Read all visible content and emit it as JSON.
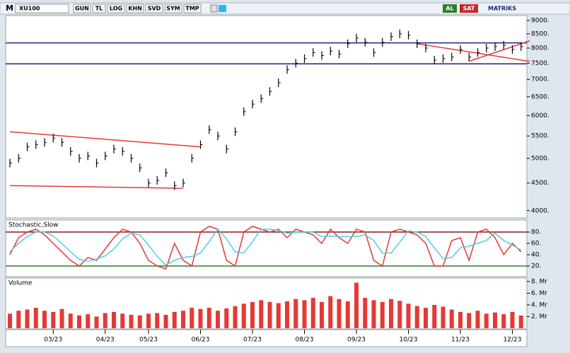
{
  "toolbar": {
    "menu": "M",
    "symbol": "XU100",
    "buttons": [
      "GUN",
      "TL",
      "LOG",
      "KHN",
      "SVD",
      "SYM",
      "TMP"
    ],
    "buy": "AL",
    "sell": "SAT",
    "brand": "MATRIKS"
  },
  "chart_data": [
    {
      "type": "ohlc-close",
      "log_scale": true,
      "color": "#000000",
      "values": [
        4900,
        5000,
        5250,
        5300,
        5350,
        5450,
        5350,
        5150,
        5000,
        5050,
        4900,
        5050,
        5200,
        5150,
        5000,
        4800,
        4500,
        4550,
        4700,
        4450,
        4500,
        5000,
        5300,
        5650,
        5500,
        5200,
        5600,
        6100,
        6300,
        6450,
        6650,
        6900,
        7300,
        7500,
        7650,
        7850,
        7750,
        7900,
        7800,
        8150,
        8350,
        8200,
        7850,
        8200,
        8400,
        8500,
        8450,
        8150,
        8000,
        7600,
        7650,
        7700,
        7950,
        7700,
        7850,
        8000,
        8050,
        8100,
        7950,
        8050
      ],
      "ylim": [
        3890,
        9190
      ],
      "yticks": [
        {
          "value": 9000,
          "label": "9000."
        },
        {
          "value": 8500,
          "label": "8500."
        },
        {
          "value": 8000,
          "label": "8000."
        },
        {
          "value": 7500,
          "label": "7500."
        },
        {
          "value": 7000,
          "label": "7000."
        },
        {
          "value": 6500,
          "label": "6500."
        },
        {
          "value": 6000,
          "label": "6000."
        },
        {
          "value": 5500,
          "label": "5500."
        },
        {
          "value": 5000,
          "label": "5000."
        },
        {
          "value": 4500,
          "label": "4500."
        },
        {
          "value": 4000,
          "label": "4000."
        }
      ],
      "levels": [
        8180,
        7480
      ],
      "level_color": "#1a237e",
      "trendlines": [
        [
          [
            0,
            5600
          ],
          [
            22,
            5250
          ]
        ],
        [
          [
            0,
            4450
          ],
          [
            20,
            4400
          ]
        ],
        [
          [
            47,
            8150
          ],
          [
            60,
            7560
          ]
        ],
        [
          [
            53,
            7560
          ],
          [
            60,
            8250
          ]
        ]
      ],
      "trend_color": "#e53935"
    },
    {
      "type": "line",
      "title": "Stochastic,Slow",
      "series": [
        {
          "color": "#e53935",
          "values": [
            40,
            70,
            80,
            85,
            75,
            60,
            45,
            30,
            20,
            35,
            30,
            50,
            70,
            85,
            80,
            60,
            30,
            20,
            15,
            60,
            30,
            20,
            80,
            90,
            85,
            30,
            20,
            80,
            90,
            85,
            80,
            85,
            70,
            85,
            80,
            75,
            60,
            85,
            70,
            60,
            85,
            80,
            30,
            20,
            80,
            85,
            80,
            75,
            60,
            20,
            20,
            65,
            70,
            30,
            80,
            85,
            70,
            40,
            60,
            45
          ]
        },
        {
          "color": "#4dd0e1",
          "values": [
            45,
            60,
            72,
            80,
            80,
            73,
            60,
            45,
            32,
            28,
            32,
            38,
            50,
            68,
            78,
            75,
            57,
            37,
            22,
            30,
            35,
            37,
            43,
            63,
            85,
            68,
            45,
            43,
            63,
            85,
            85,
            83,
            78,
            80,
            80,
            80,
            72,
            73,
            72,
            72,
            72,
            75,
            65,
            43,
            43,
            62,
            82,
            80,
            72,
            52,
            33,
            35,
            52,
            55,
            60,
            65,
            78,
            65,
            57,
            48
          ]
        }
      ],
      "ylim": [
        0,
        100
      ],
      "yticks": [
        {
          "value": 80,
          "label": "80."
        },
        {
          "value": 60,
          "label": "60."
        },
        {
          "value": 40,
          "label": "40."
        },
        {
          "value": 20,
          "label": "20."
        }
      ],
      "levels": [
        80,
        20
      ],
      "level_colors": [
        "#8b1a1a",
        "#2e7d32"
      ]
    },
    {
      "type": "bar",
      "title": "Volume",
      "color": "#e53935",
      "categories": [
        null,
        null,
        null,
        null,
        null,
        "03/23",
        null,
        null,
        null,
        null,
        null,
        "04/23",
        null,
        null,
        null,
        null,
        "05/23",
        null,
        null,
        null,
        null,
        null,
        "06/23",
        null,
        null,
        null,
        null,
        null,
        "07/23",
        null,
        null,
        null,
        null,
        null,
        "08/23",
        null,
        null,
        null,
        null,
        null,
        "09/23",
        null,
        null,
        null,
        null,
        null,
        "10/23",
        null,
        null,
        null,
        null,
        null,
        "11/23",
        null,
        null,
        null,
        null,
        null,
        "12/23",
        null
      ],
      "values": [
        2.5,
        3,
        3.2,
        3.5,
        3,
        2.8,
        3.3,
        2.5,
        2.2,
        2.4,
        2,
        2.6,
        2.8,
        2.5,
        2.3,
        2.2,
        2.5,
        2.6,
        2.3,
        2.8,
        3,
        3.5,
        3.3,
        3.5,
        3,
        3.4,
        3.8,
        4.2,
        4.5,
        4.8,
        4.5,
        4.3,
        4.6,
        5,
        4.8,
        5.2,
        4.5,
        5.5,
        5,
        4.6,
        7.8,
        5.2,
        4.8,
        4.5,
        5,
        4.7,
        4.2,
        3.8,
        3.5,
        4,
        3.7,
        3.2,
        2.8,
        2.6,
        3,
        2.5,
        2.7,
        2.4,
        2.8,
        2.2
      ],
      "ylim": [
        0,
        8.6
      ],
      "yticks": [
        {
          "value": 8,
          "label": "8. Mr"
        },
        {
          "value": 6,
          "label": "6. Mr"
        },
        {
          "value": 4,
          "label": "4. Mr"
        },
        {
          "value": 2,
          "label": "2. Mr"
        }
      ]
    }
  ]
}
